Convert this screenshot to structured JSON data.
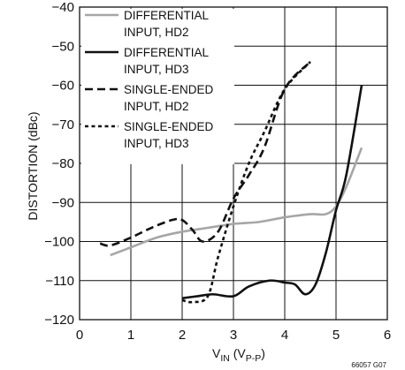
{
  "chart_data": {
    "type": "line",
    "figure_id": "66057 G07",
    "xlabel": {
      "main": "V",
      "main_sub": "IN",
      "paren_open": " (V",
      "unit_sub": "P-P",
      "paren_close": ")"
    },
    "ylabel": "DISTORTION (dBc)",
    "xlim": [
      0,
      6
    ],
    "ylim": [
      -120,
      -40
    ],
    "xticks": [
      0,
      1,
      2,
      3,
      4,
      5,
      6
    ],
    "yticks": [
      -40,
      -50,
      -60,
      -70,
      -80,
      -90,
      -100,
      -110,
      -120
    ],
    "ytick_labels": [
      "−40",
      "−50",
      "−60",
      "−70",
      "−80",
      "−90",
      "−100",
      "−110",
      "−120"
    ],
    "grid": true,
    "legend_position": "top-left",
    "series": [
      {
        "name_lines": [
          "DIFFERENTIAL",
          "INPUT, HD2"
        ],
        "color": "#a6a6a6",
        "style": "solid",
        "x": [
          0.6,
          1.0,
          1.5,
          2.0,
          2.5,
          3.0,
          3.5,
          4.0,
          4.5,
          4.8,
          5.0,
          5.2,
          5.5
        ],
        "y": [
          -103.5,
          -101.5,
          -99,
          -97.5,
          -96.5,
          -95.5,
          -95,
          -93.8,
          -93,
          -93,
          -91,
          -86,
          -76
        ]
      },
      {
        "name_lines": [
          "DIFFERENTIAL",
          "INPUT, HD3"
        ],
        "color": "#111111",
        "style": "solid",
        "x": [
          2.0,
          2.3,
          2.6,
          3.0,
          3.3,
          3.7,
          4.0,
          4.2,
          4.4,
          4.6,
          4.8,
          5.0,
          5.2,
          5.5
        ],
        "y": [
          -114.5,
          -114,
          -113.5,
          -114,
          -111.5,
          -110,
          -110.5,
          -111,
          -113.5,
          -111,
          -103,
          -92,
          -83,
          -60
        ]
      },
      {
        "name_lines": [
          "SINGLE-ENDED",
          "INPUT, HD2"
        ],
        "color": "#111111",
        "style": "dashed",
        "x": [
          0.4,
          0.6,
          1.0,
          1.4,
          1.8,
          2.0,
          2.2,
          2.4,
          2.7,
          3.0,
          3.3,
          3.6,
          4.0,
          4.5
        ],
        "y": [
          -100.5,
          -101,
          -99,
          -96.5,
          -94.5,
          -94.5,
          -97,
          -100,
          -97.5,
          -89,
          -83,
          -76,
          -61,
          -54
        ]
      },
      {
        "name_lines": [
          "SINGLE-ENDED",
          "INPUT, HD3"
        ],
        "color": "#111111",
        "style": "dotted",
        "x": [
          2.0,
          2.2,
          2.5,
          2.7,
          3.0,
          3.3,
          3.6,
          4.0,
          4.5
        ],
        "y": [
          -115,
          -115.5,
          -114,
          -104,
          -91,
          -80,
          -72,
          -61,
          -54
        ]
      }
    ]
  }
}
